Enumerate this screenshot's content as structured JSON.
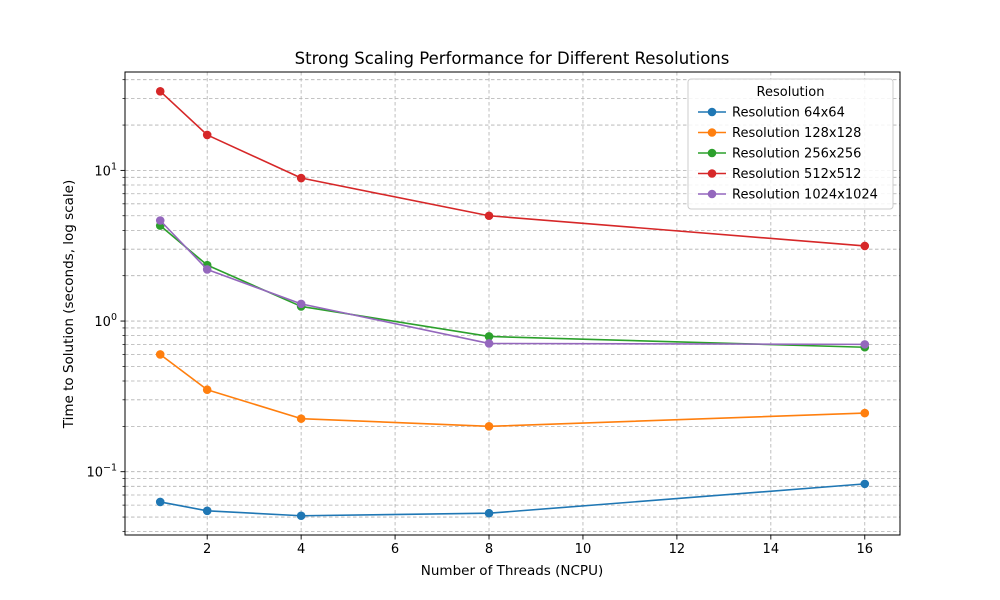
{
  "chart_data": {
    "type": "line",
    "title": "Strong Scaling Performance for Different Resolutions",
    "xlabel": "Number of Threads (NCPU)",
    "ylabel": "Time to Solution (seconds, log scale)",
    "yscale": "log",
    "xlim": [
      0.25,
      16.75
    ],
    "ylim": [
      0.038,
      45
    ],
    "x_ticks": [
      2,
      4,
      6,
      8,
      10,
      12,
      14,
      16
    ],
    "x_tick_labels": [
      "2",
      "4",
      "6",
      "8",
      "10",
      "12",
      "14",
      "16"
    ],
    "y_major_ticks": [
      0.1,
      1,
      10
    ],
    "y_tick_labels": [
      "10^-1",
      "10^0",
      "10^1"
    ],
    "grid": true,
    "legend": {
      "title": "Resolution",
      "position": "upper right"
    },
    "x": [
      1,
      2,
      4,
      8,
      16
    ],
    "series": [
      {
        "name": "Resolution 64x64",
        "color": "#1f77b4",
        "values": [
          0.063,
          0.055,
          0.051,
          0.053,
          0.083
        ]
      },
      {
        "name": "Resolution 128x128",
        "color": "#ff7f0e",
        "values": [
          0.6,
          0.35,
          0.225,
          0.2,
          0.245
        ]
      },
      {
        "name": "Resolution 256x256",
        "color": "#2ca02c",
        "values": [
          4.3,
          2.35,
          1.25,
          0.79,
          0.67
        ]
      },
      {
        "name": "Resolution 512x512",
        "color": "#d62728",
        "values": [
          33.5,
          17.2,
          8.9,
          5.0,
          3.15
        ]
      },
      {
        "name": "Resolution 1024x1024",
        "color": "#9467bd",
        "values": [
          4.65,
          2.2,
          1.3,
          0.71,
          0.7
        ]
      }
    ]
  }
}
